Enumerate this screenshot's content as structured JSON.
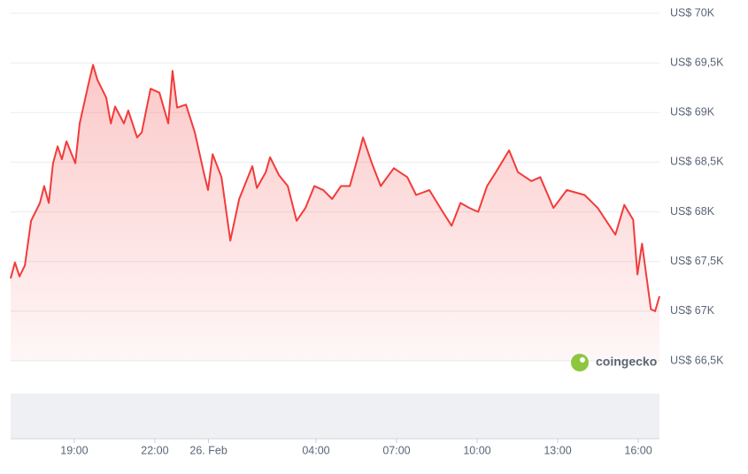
{
  "chart_data": {
    "type": "line",
    "watermark": "coingecko",
    "x": [
      16.63,
      16.79,
      16.96,
      17.16,
      17.39,
      17.72,
      17.88,
      18.05,
      18.21,
      18.38,
      18.54,
      18.71,
      19.04,
      19.2,
      19.53,
      19.7,
      19.86,
      20.19,
      20.36,
      20.52,
      20.85,
      21.01,
      21.34,
      21.51,
      21.84,
      22.17,
      22.5,
      22.66,
      22.83,
      23.16,
      23.49,
      23.82,
      23.98,
      24.15,
      24.48,
      24.81,
      25.14,
      25.63,
      25.8,
      26.13,
      26.29,
      26.62,
      26.95,
      27.28,
      27.61,
      27.94,
      28.27,
      28.6,
      28.93,
      29.26,
      29.59,
      29.75,
      30.08,
      30.41,
      30.9,
      31.4,
      31.73,
      32.22,
      32.72,
      33.05,
      33.38,
      33.71,
      34.04,
      34.37,
      34.7,
      35.19,
      35.52,
      36.02,
      36.35,
      36.84,
      37.34,
      38.0,
      38.49,
      39.15,
      39.48,
      39.81,
      39.97,
      40.14,
      40.47,
      40.63,
      40.79
    ],
    "values": [
      67330,
      67490,
      67350,
      67460,
      67910,
      68090,
      68260,
      68090,
      68490,
      68660,
      68530,
      68710,
      68490,
      68890,
      69290,
      69480,
      69330,
      69150,
      68890,
      69060,
      68890,
      69020,
      68750,
      68800,
      69240,
      69200,
      68890,
      69420,
      69050,
      69080,
      68800,
      68400,
      68220,
      68580,
      68350,
      67710,
      68130,
      68460,
      68240,
      68400,
      68550,
      68370,
      68260,
      67910,
      68040,
      68260,
      68220,
      68130,
      68260,
      68260,
      68580,
      68750,
      68490,
      68260,
      68440,
      68350,
      68170,
      68220,
      68000,
      67860,
      68090,
      68040,
      68000,
      68260,
      68400,
      68620,
      68400,
      68310,
      68350,
      68040,
      68220,
      68170,
      68040,
      67770,
      68070,
      67920,
      67370,
      67680,
      67020,
      67000,
      67150
    ],
    "color": "#f33b3b",
    "xlim": [
      16.63,
      40.79
    ],
    "xticks": [
      {
        "value": 19,
        "label": "19:00"
      },
      {
        "value": 22,
        "label": "22:00"
      },
      {
        "value": 24,
        "label": "26. Feb"
      },
      {
        "value": 28,
        "label": "04:00"
      },
      {
        "value": 31,
        "label": "07:00"
      },
      {
        "value": 34,
        "label": "10:00"
      },
      {
        "value": 37,
        "label": "13:00"
      },
      {
        "value": 40,
        "label": "16:00"
      }
    ],
    "ylim": [
      66500,
      70000
    ],
    "yticks": [
      {
        "value": 66500,
        "label": "US$ 66,5K"
      },
      {
        "value": 67000,
        "label": "US$ 67K"
      },
      {
        "value": 67500,
        "label": "US$ 67,5K"
      },
      {
        "value": 68000,
        "label": "US$ 68K"
      },
      {
        "value": 68500,
        "label": "US$ 68,5K"
      },
      {
        "value": 69000,
        "label": "US$ 69K"
      },
      {
        "value": 69500,
        "label": "US$ 69,5K"
      },
      {
        "value": 70000,
        "label": "US$ 70K"
      }
    ],
    "grid": true
  }
}
